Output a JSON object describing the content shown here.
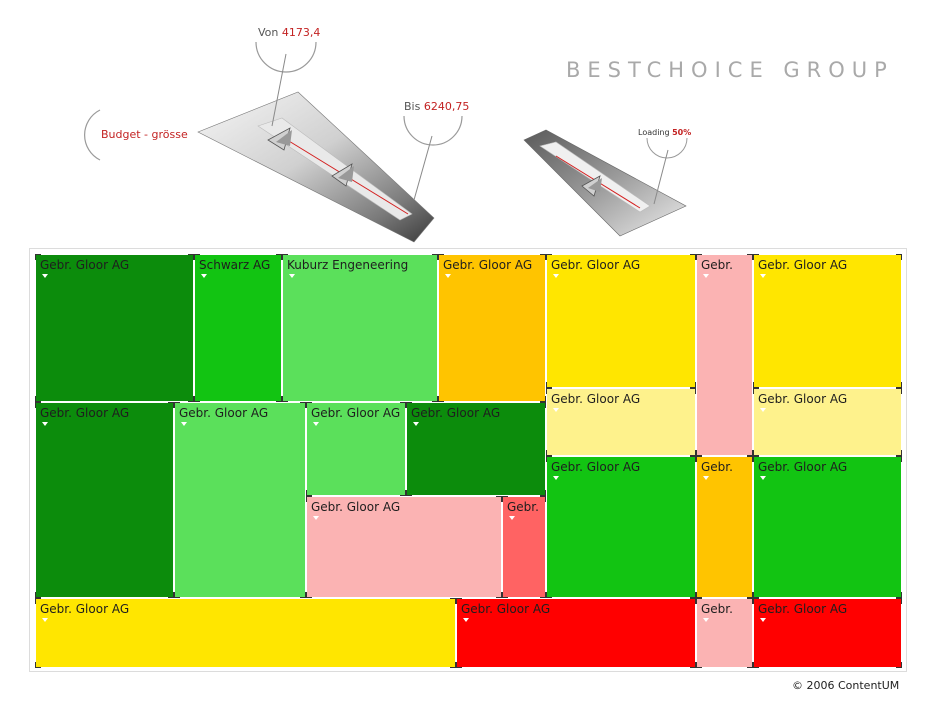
{
  "brand": "BESTCHOICE GROUP",
  "budget_slider": {
    "label": "Budget - grösse",
    "from_label": "Von",
    "from_value": "4173,4",
    "to_label": "Bis",
    "to_value": "6240,75"
  },
  "loading": {
    "label": "Loading",
    "value": "50%",
    "progress": 0.5
  },
  "colors": {
    "dark_green": "#0c8c0c",
    "green": "#12c412",
    "light_green": "#5be05b",
    "orange": "#ffc400",
    "yellow": "#ffe600",
    "light_yellow": "#fef28c",
    "pink": "#fbb3b3",
    "salmon": "#ff6363",
    "red": "#ff0000"
  },
  "treemap": {
    "tiles": [
      {
        "label": "Gebr. Gloor AG",
        "color": "#0c8c0c"
      },
      {
        "label": "Schwarz AG",
        "color": "#12c412"
      },
      {
        "label": "Kuburz Engeneering",
        "color": "#5be05b"
      },
      {
        "label": "Gebr. Gloor AG",
        "color": "#ffc400"
      },
      {
        "label": "Gebr. Gloor AG",
        "color": "#ffe600"
      },
      {
        "label": "Gebr.",
        "color": "#fbb3b3"
      },
      {
        "label": "Gebr. Gloor AG",
        "color": "#ffe600"
      },
      {
        "label": "Gebr. Gloor AG",
        "color": "#0c8c0c"
      },
      {
        "label": "Gebr. Gloor AG",
        "color": "#5be05b"
      },
      {
        "label": "Gebr. Gloor AG",
        "color": "#5be05b"
      },
      {
        "label": "Gebr. Gloor AG",
        "color": "#0c8c0c"
      },
      {
        "label": "Gebr. Gloor AG",
        "color": "#fef28c"
      },
      {
        "label": "Gebr. Gloor AG",
        "color": "#fef28c"
      },
      {
        "label": "Gebr. Gloor AG",
        "color": "#12c412"
      },
      {
        "label": "Gebr.",
        "color": "#ffc400"
      },
      {
        "label": "Gebr. Gloor AG",
        "color": "#12c412"
      },
      {
        "label": "Gebr. Gloor AG",
        "color": "#fbb3b3"
      },
      {
        "label": "Gebr.",
        "color": "#ff6363"
      },
      {
        "label": "Gebr. Gloor AG",
        "color": "#ffe600"
      },
      {
        "label": "Gebr. Gloor AG",
        "color": "#ff0000"
      },
      {
        "label": "Gebr.",
        "color": "#fbb3b3"
      },
      {
        "label": "Gebr. Gloor AG",
        "color": "#ff0000"
      }
    ]
  },
  "footer": "© 2006 ContentUM"
}
